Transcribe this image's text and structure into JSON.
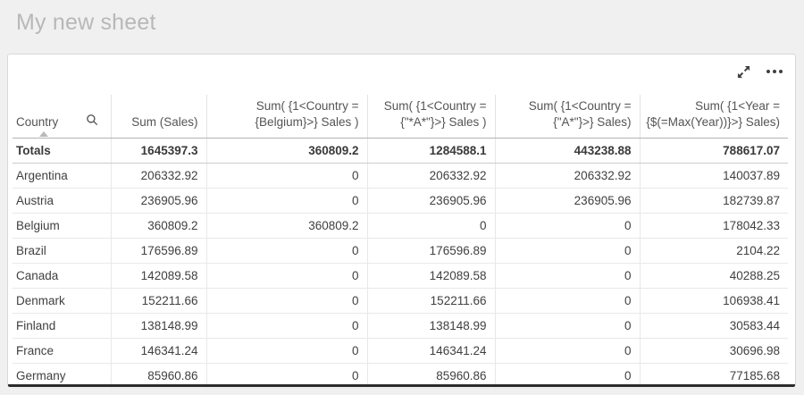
{
  "sheet": {
    "title": "My new sheet"
  },
  "toolbar": {
    "fullscreen_icon": "expand-arrows",
    "more_options_icon": "ellipsis-dots"
  },
  "table": {
    "columns": [
      {
        "id": "country",
        "label": "Country",
        "align": "left",
        "sorted": "asc",
        "has_search_icon": true
      },
      {
        "id": "sum-sales",
        "label": "Sum (Sales)",
        "align": "right"
      },
      {
        "id": "sum-belgium",
        "label": "Sum( {1<Country = {Belgium}>} Sales )",
        "align": "right"
      },
      {
        "id": "sum-star-a",
        "label": "Sum( {1<Country = {\"*A*\"}>} Sales )",
        "align": "right"
      },
      {
        "id": "sum-a-star",
        "label": "Sum( {1<Country = {\"A*\"}>} Sales)",
        "align": "right"
      },
      {
        "id": "sum-max-year",
        "label": "Sum( {1<Year = {$(=Max(Year))}>} Sales)",
        "align": "right"
      }
    ],
    "totals": [
      "Totals",
      "1645397.3",
      "360809.2",
      "1284588.1",
      "443238.88",
      "788617.07"
    ],
    "rows": [
      [
        "Argentina",
        "206332.92",
        "0",
        "206332.92",
        "206332.92",
        "140037.89"
      ],
      [
        "Austria",
        "236905.96",
        "0",
        "236905.96",
        "236905.96",
        "182739.87"
      ],
      [
        "Belgium",
        "360809.2",
        "360809.2",
        "0",
        "0",
        "178042.33"
      ],
      [
        "Brazil",
        "176596.89",
        "0",
        "176596.89",
        "0",
        "2104.22"
      ],
      [
        "Canada",
        "142089.58",
        "0",
        "142089.58",
        "0",
        "40288.25"
      ],
      [
        "Denmark",
        "152211.66",
        "0",
        "152211.66",
        "0",
        "106938.41"
      ],
      [
        "Finland",
        "138148.99",
        "0",
        "138148.99",
        "0",
        "30583.44"
      ],
      [
        "France",
        "146341.24",
        "0",
        "146341.24",
        "0",
        "30696.98"
      ],
      [
        "Germany",
        "85960.86",
        "0",
        "85960.86",
        "0",
        "77185.68"
      ]
    ]
  },
  "colors": {
    "page_background": "#f0f0f0",
    "card_background": "#ffffff",
    "title_text": "#b8b8b8",
    "header_text": "#545454",
    "cell_text": "#404040",
    "bottom_bar": "#2b2b2b"
  }
}
